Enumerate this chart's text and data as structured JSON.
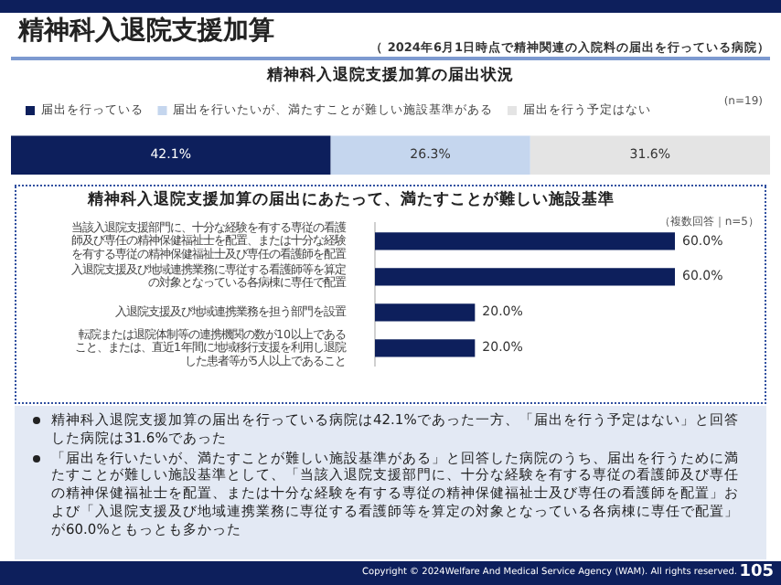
{
  "chart_data": [
    {
      "type": "bar",
      "title": "精神科入退院支援加算の届出状況",
      "orientation": "horizontal",
      "stacked": true,
      "categories": [
        null
      ],
      "series": [
        {
          "name": "届出を行っている",
          "color": "#0d1f5c",
          "values": [
            42.1
          ],
          "value_labels": [
            "42.1%"
          ]
        },
        {
          "name": "届出を行いたいが、満たすことが難しい施設基準がある",
          "color": "#c5d6ee",
          "values": [
            26.3
          ],
          "value_labels": [
            "26.3%"
          ]
        },
        {
          "name": "届出を行う予定はない",
          "color": "#e4e4e4",
          "values": [
            31.6
          ],
          "value_labels": [
            "31.6%"
          ]
        }
      ],
      "xlim": [
        0,
        100
      ],
      "tick_labels": false,
      "legend": "top",
      "annotations": [
        "精神科入退院支援加算",
        "（ 2024年6月1日時点で精神関連の入院料の届出を行っている病院）",
        "(n=19)"
      ]
    },
    {
      "type": "bar",
      "title": "精神科入退院支援加算の届出にあたって、満たすことが難しい施設基準",
      "orientation": "horizontal",
      "categories": [
        "当該入退院支援部門に、十分な経験を有する専従の看護師及び専任の精神保健福祉士を配置、または十分な経験を有する専従の精神保健福祉士及び専任の看護師を配置",
        "入退院支援及び地域連携業務に専従する看護師等を算定の対象となっている各病棟に専任で配置",
        "入退院支援及び地域連携業務を担う部門を設置",
        "転院または退院体制等の連携機関の数が10以上であること、または、直近1年間に地域移行支援を利用し退院した患者等が5人以上であること"
      ],
      "values": [
        60.0,
        60.0,
        20.0,
        20.0
      ],
      "value_labels": [
        "60.0%",
        "60.0%",
        "20.0%",
        "20.0%"
      ],
      "color": "#0d1f5c",
      "tick_labels": "y",
      "annotations": [
        "（複数回答｜n=5）",
        "精神科入退院支援加算の届出を行っている病院は42.1%であった一方、「届出を行う予定はない」と回答した病院は31.6%であった",
        "「届出を行いたいが、満たすことが難しい施設基準がある」と回答した病院のうち、届出を行うために満たすことが難しい施設基準として、「当該入退院支援部門に、十分な経験を有する専従の看護師及び専任の精神保健福祉士を配置、または十分な経験を有する専従の精神保健福祉士及び専任の看護師を配置」および「入退院支援及び地域連携業務に専従する看護師等を算定の対象となっている各病棟に専任で配置」が60.0%ともっとも多かった",
        "Copyright © 2024Welfare And Medical Service Agency (WAM). All rights reserved.",
        "105"
      ]
    }
  ]
}
